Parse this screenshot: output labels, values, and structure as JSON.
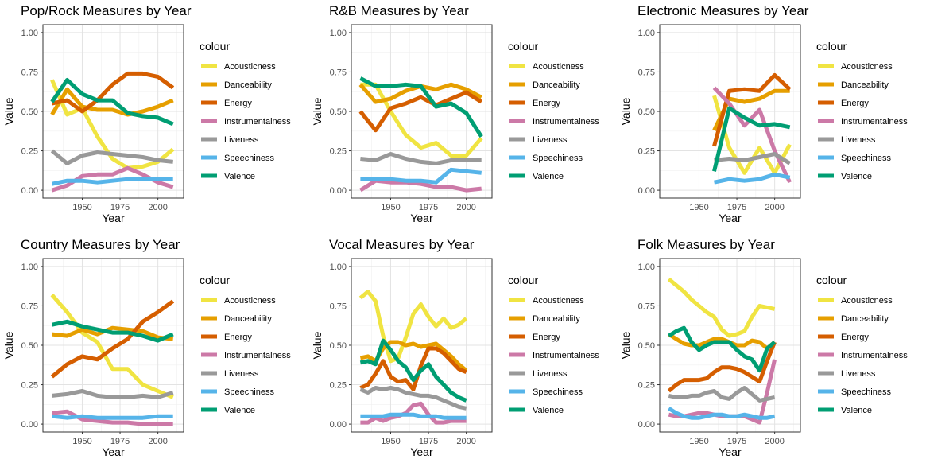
{
  "legend": {
    "title": "colour",
    "entries": [
      {
        "name": "Acousticness",
        "color": "#F0E442"
      },
      {
        "name": "Danceability",
        "color": "#E69F00"
      },
      {
        "name": "Energy",
        "color": "#D55E00"
      },
      {
        "name": "Instrumentalness",
        "color": "#CC79A7"
      },
      {
        "name": "Liveness",
        "color": "#999999"
      },
      {
        "name": "Speechiness",
        "color": "#56B4E9"
      },
      {
        "name": "Valence",
        "color": "#009E73"
      }
    ]
  },
  "chart_data": [
    {
      "type": "line",
      "title": "Pop/Rock Measures by Year",
      "xlabel": "Year",
      "ylabel": "Value",
      "xlim": [
        1924,
        2017
      ],
      "ylim": [
        -0.05,
        1.05
      ],
      "xticks": [
        1950,
        1975,
        2000
      ],
      "yticks": [
        0.0,
        0.25,
        0.5,
        0.75,
        1.0
      ],
      "ytick_labels": [
        "0.00",
        "0.25",
        "0.50",
        "0.75",
        "1.00"
      ],
      "grid": true,
      "legend_position": "right",
      "x": [
        1930,
        1940,
        1950,
        1960,
        1970,
        1980,
        1990,
        2000,
        2010
      ],
      "series": [
        {
          "name": "Acousticness",
          "values": [
            0.7,
            0.48,
            0.52,
            0.34,
            0.2,
            0.14,
            0.15,
            0.18,
            0.26
          ]
        },
        {
          "name": "Danceability",
          "values": [
            0.48,
            0.64,
            0.53,
            0.51,
            0.51,
            0.48,
            0.5,
            0.53,
            0.57
          ]
        },
        {
          "name": "Energy",
          "values": [
            0.55,
            0.57,
            0.5,
            0.57,
            0.67,
            0.74,
            0.74,
            0.72,
            0.65
          ]
        },
        {
          "name": "Instrumentalness",
          "values": [
            0.0,
            0.03,
            0.09,
            0.1,
            0.1,
            0.14,
            0.1,
            0.05,
            0.02
          ]
        },
        {
          "name": "Liveness",
          "values": [
            0.25,
            0.17,
            0.22,
            0.24,
            0.23,
            0.22,
            0.21,
            0.19,
            0.18
          ]
        },
        {
          "name": "Speechiness",
          "values": [
            0.04,
            0.06,
            0.06,
            0.05,
            0.06,
            0.07,
            0.07,
            0.07,
            0.07
          ]
        },
        {
          "name": "Valence",
          "values": [
            0.56,
            0.7,
            0.61,
            0.57,
            0.57,
            0.49,
            0.47,
            0.46,
            0.42
          ]
        }
      ]
    },
    {
      "type": "line",
      "title": "R&B Measures by Year",
      "xlabel": "Year",
      "ylabel": "Value",
      "xlim": [
        1924,
        2017
      ],
      "ylim": [
        -0.05,
        1.05
      ],
      "xticks": [
        1950,
        1975,
        2000
      ],
      "yticks": [
        0.0,
        0.25,
        0.5,
        0.75,
        1.0
      ],
      "ytick_labels": [
        "0.00",
        "0.25",
        "0.50",
        "0.75",
        "1.00"
      ],
      "grid": true,
      "legend_position": "right",
      "x": [
        1930,
        1940,
        1950,
        1960,
        1970,
        1980,
        1990,
        2000,
        2010
      ],
      "series": [
        {
          "name": "Acousticness",
          "values": [
            0.67,
            0.67,
            0.5,
            0.35,
            0.27,
            0.3,
            0.22,
            0.22,
            0.33
          ]
        },
        {
          "name": "Danceability",
          "values": [
            0.67,
            0.56,
            0.58,
            0.63,
            0.66,
            0.64,
            0.67,
            0.64,
            0.59
          ]
        },
        {
          "name": "Energy",
          "values": [
            0.5,
            0.38,
            0.52,
            0.55,
            0.59,
            0.54,
            0.58,
            0.62,
            0.56
          ]
        },
        {
          "name": "Instrumentalness",
          "values": [
            0.0,
            0.06,
            0.05,
            0.05,
            0.04,
            0.02,
            0.02,
            0.0,
            0.01
          ]
        },
        {
          "name": "Liveness",
          "values": [
            0.2,
            0.19,
            0.23,
            0.2,
            0.18,
            0.17,
            0.19,
            0.19,
            0.19
          ]
        },
        {
          "name": "Speechiness",
          "values": [
            0.07,
            0.07,
            0.07,
            0.06,
            0.06,
            0.05,
            0.13,
            0.12,
            0.11
          ]
        },
        {
          "name": "Valence",
          "values": [
            0.71,
            0.66,
            0.66,
            0.67,
            0.66,
            0.53,
            0.55,
            0.49,
            0.34
          ]
        }
      ]
    },
    {
      "type": "line",
      "title": "Electronic Measures by Year",
      "xlabel": "Year",
      "ylabel": "Value",
      "xlim": [
        1924,
        2017
      ],
      "ylim": [
        -0.05,
        1.05
      ],
      "xticks": [
        1950,
        1975,
        2000
      ],
      "yticks": [
        0.0,
        0.25,
        0.5,
        0.75,
        1.0
      ],
      "ytick_labels": [
        "0.00",
        "0.25",
        "0.50",
        "0.75",
        "1.00"
      ],
      "grid": true,
      "legend_position": "right",
      "x": [
        1960,
        1970,
        1980,
        1990,
        2000,
        2010
      ],
      "series": [
        {
          "name": "Acousticness",
          "values": [
            0.6,
            0.27,
            0.11,
            0.27,
            0.11,
            0.29
          ]
        },
        {
          "name": "Danceability",
          "values": [
            0.38,
            0.58,
            0.56,
            0.58,
            0.63,
            0.63
          ]
        },
        {
          "name": "Energy",
          "values": [
            0.28,
            0.63,
            0.64,
            0.63,
            0.73,
            0.64
          ]
        },
        {
          "name": "Instrumentalness",
          "values": [
            0.65,
            0.55,
            0.41,
            0.51,
            0.25,
            0.05
          ]
        },
        {
          "name": "Liveness",
          "values": [
            0.19,
            0.2,
            0.19,
            0.21,
            0.23,
            0.17
          ]
        },
        {
          "name": "Speechiness",
          "values": [
            0.05,
            0.07,
            0.06,
            0.07,
            0.1,
            0.08
          ]
        },
        {
          "name": "Valence",
          "values": [
            0.12,
            0.52,
            0.46,
            0.41,
            0.42,
            0.4
          ]
        }
      ]
    },
    {
      "type": "line",
      "title": "Country Measures by Year",
      "xlabel": "Year",
      "ylabel": "Value",
      "xlim": [
        1924,
        2017
      ],
      "ylim": [
        -0.05,
        1.05
      ],
      "xticks": [
        1950,
        1975,
        2000
      ],
      "yticks": [
        0.0,
        0.25,
        0.5,
        0.75,
        1.0
      ],
      "ytick_labels": [
        "0.00",
        "0.25",
        "0.50",
        "0.75",
        "1.00"
      ],
      "grid": true,
      "legend_position": "right",
      "x": [
        1930,
        1940,
        1950,
        1960,
        1970,
        1980,
        1990,
        2000,
        2010
      ],
      "series": [
        {
          "name": "Acousticness",
          "values": [
            0.82,
            0.71,
            0.58,
            0.52,
            0.35,
            0.35,
            0.25,
            0.21,
            0.17
          ]
        },
        {
          "name": "Danceability",
          "values": [
            0.57,
            0.56,
            0.6,
            0.57,
            0.61,
            0.6,
            0.59,
            0.55,
            0.54
          ]
        },
        {
          "name": "Energy",
          "values": [
            0.3,
            0.38,
            0.43,
            0.41,
            0.48,
            0.54,
            0.65,
            0.71,
            0.78
          ]
        },
        {
          "name": "Instrumentalness",
          "values": [
            0.07,
            0.08,
            0.03,
            0.02,
            0.01,
            0.01,
            0.0,
            0.0,
            0.0
          ]
        },
        {
          "name": "Liveness",
          "values": [
            0.18,
            0.19,
            0.21,
            0.18,
            0.17,
            0.17,
            0.18,
            0.17,
            0.2
          ]
        },
        {
          "name": "Speechiness",
          "values": [
            0.05,
            0.04,
            0.05,
            0.04,
            0.04,
            0.04,
            0.04,
            0.05,
            0.05
          ]
        },
        {
          "name": "Valence",
          "values": [
            0.63,
            0.65,
            0.62,
            0.6,
            0.58,
            0.58,
            0.56,
            0.53,
            0.57
          ]
        }
      ]
    },
    {
      "type": "line",
      "title": "Vocal Measures by Year",
      "xlabel": "Year",
      "ylabel": "Value",
      "xlim": [
        1924,
        2017
      ],
      "ylim": [
        -0.05,
        1.05
      ],
      "xticks": [
        1950,
        1975,
        2000
      ],
      "yticks": [
        0.0,
        0.25,
        0.5,
        0.75,
        1.0
      ],
      "ytick_labels": [
        "0.00",
        "0.25",
        "0.50",
        "0.75",
        "1.00"
      ],
      "grid": true,
      "legend_position": "right",
      "x": [
        1930,
        1935,
        1940,
        1945,
        1950,
        1955,
        1960,
        1965,
        1970,
        1975,
        1980,
        1985,
        1990,
        1995,
        2000
      ],
      "series": [
        {
          "name": "Acousticness",
          "values": [
            0.8,
            0.84,
            0.78,
            0.56,
            0.4,
            0.42,
            0.55,
            0.7,
            0.76,
            0.68,
            0.62,
            0.67,
            0.61,
            0.63,
            0.67
          ]
        },
        {
          "name": "Danceability",
          "values": [
            0.42,
            0.43,
            0.4,
            0.48,
            0.52,
            0.52,
            0.5,
            0.51,
            0.49,
            0.5,
            0.51,
            0.47,
            0.43,
            0.38,
            0.34
          ]
        },
        {
          "name": "Energy",
          "values": [
            0.23,
            0.25,
            0.32,
            0.4,
            0.3,
            0.27,
            0.28,
            0.22,
            0.37,
            0.48,
            0.48,
            0.45,
            0.4,
            0.35,
            0.33
          ]
        },
        {
          "name": "Instrumentalness",
          "values": [
            0.01,
            0.01,
            0.04,
            0.02,
            0.04,
            0.05,
            0.07,
            0.12,
            0.13,
            0.06,
            0.01,
            0.01,
            0.02,
            0.02,
            0.02
          ]
        },
        {
          "name": "Liveness",
          "values": [
            0.22,
            0.2,
            0.23,
            0.22,
            0.23,
            0.22,
            0.2,
            0.19,
            0.18,
            0.18,
            0.17,
            0.15,
            0.13,
            0.11,
            0.1
          ]
        },
        {
          "name": "Speechiness",
          "values": [
            0.05,
            0.05,
            0.05,
            0.05,
            0.06,
            0.06,
            0.06,
            0.06,
            0.05,
            0.05,
            0.05,
            0.04,
            0.04,
            0.04,
            0.04
          ]
        },
        {
          "name": "Valence",
          "values": [
            0.39,
            0.4,
            0.38,
            0.53,
            0.47,
            0.4,
            0.36,
            0.28,
            0.34,
            0.38,
            0.3,
            0.25,
            0.2,
            0.17,
            0.15
          ]
        }
      ]
    },
    {
      "type": "line",
      "title": "Folk Measures by Year",
      "xlabel": "Year",
      "ylabel": "Value",
      "xlim": [
        1924,
        2017
      ],
      "ylim": [
        -0.05,
        1.05
      ],
      "xticks": [
        1950,
        1975,
        2000
      ],
      "yticks": [
        0.0,
        0.25,
        0.5,
        0.75,
        1.0
      ],
      "ytick_labels": [
        "0.00",
        "0.25",
        "0.50",
        "0.75",
        "1.00"
      ],
      "grid": true,
      "legend_position": "right",
      "x": [
        1930,
        1935,
        1940,
        1945,
        1950,
        1955,
        1960,
        1965,
        1970,
        1975,
        1980,
        1985,
        1990,
        1995,
        2000
      ],
      "series": [
        {
          "name": "Acousticness",
          "values": [
            0.92,
            0.88,
            0.84,
            0.79,
            0.75,
            0.71,
            0.68,
            0.6,
            0.56,
            0.57,
            0.59,
            0.68,
            0.75,
            0.74,
            0.73
          ]
        },
        {
          "name": "Danceability",
          "values": [
            0.57,
            0.54,
            0.51,
            0.5,
            0.5,
            0.52,
            0.54,
            0.54,
            0.52,
            0.5,
            0.5,
            0.53,
            0.52,
            0.48,
            0.52
          ]
        },
        {
          "name": "Energy",
          "values": [
            0.21,
            0.25,
            0.28,
            0.28,
            0.28,
            0.29,
            0.33,
            0.36,
            0.36,
            0.35,
            0.33,
            0.3,
            0.27,
            0.4,
            0.52
          ]
        },
        {
          "name": "Instrumentalness",
          "values": [
            0.06,
            0.05,
            0.05,
            0.06,
            0.07,
            0.07,
            0.06,
            0.05,
            0.05,
            0.05,
            0.05,
            0.03,
            0.01,
            0.2,
            0.41
          ]
        },
        {
          "name": "Liveness",
          "values": [
            0.18,
            0.17,
            0.17,
            0.18,
            0.18,
            0.2,
            0.21,
            0.17,
            0.16,
            0.2,
            0.23,
            0.19,
            0.15,
            0.16,
            0.17
          ]
        },
        {
          "name": "Speechiness",
          "values": [
            0.1,
            0.07,
            0.05,
            0.04,
            0.04,
            0.05,
            0.06,
            0.06,
            0.05,
            0.05,
            0.06,
            0.05,
            0.04,
            0.04,
            0.05
          ]
        },
        {
          "name": "Valence",
          "values": [
            0.56,
            0.59,
            0.61,
            0.52,
            0.47,
            0.5,
            0.52,
            0.52,
            0.52,
            0.47,
            0.43,
            0.41,
            0.34,
            0.48,
            0.52
          ]
        }
      ]
    }
  ]
}
